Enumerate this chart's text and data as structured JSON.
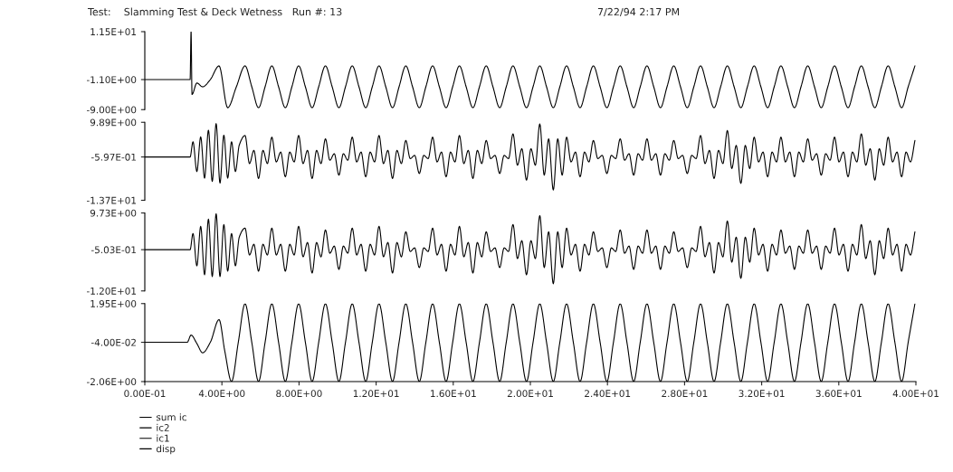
{
  "chart_data": [
    {
      "type": "line",
      "title": "Test:    Slamming Test & Deck Wetness   Run #: 13",
      "annotations": [
        "7/22/94 2:17 PM"
      ],
      "legend": "bottom left",
      "tick_labels": "y",
      "xlim": [
        0,
        40
      ],
      "ylim": [
        -9.0,
        11.5
      ],
      "yticks": [
        {
          "value": 11.5,
          "label": "1.15E+01"
        },
        {
          "value": -1.1,
          "label": "-1.10E+00"
        },
        {
          "value": -9.0,
          "label": "-9.00E+00"
        }
      ],
      "x": [
        0,
        2.35,
        2.4,
        2.45,
        2.7,
        3.0,
        3.4,
        3.85,
        4.3,
        4.75,
        5.2,
        5.55,
        5.9,
        6.24,
        6.59,
        6.94,
        7.29,
        7.63,
        7.98,
        8.33,
        8.68,
        9.02,
        9.37,
        9.72,
        10.07,
        10.41,
        10.76,
        11.11,
        11.46,
        11.8,
        12.15,
        12.5,
        12.85,
        13.19,
        13.54,
        13.89,
        14.24,
        14.58,
        14.93,
        15.28,
        15.63,
        15.97,
        16.32,
        16.67,
        17.02,
        17.36,
        17.71,
        18.06,
        18.41,
        18.75,
        19.1,
        19.45,
        19.8,
        20.14,
        20.49,
        20.84,
        21.19,
        21.53,
        21.88,
        22.23,
        22.58,
        22.92,
        23.27,
        23.62,
        23.97,
        24.31,
        24.66,
        25.01,
        25.36,
        25.7,
        26.05,
        26.4,
        26.75,
        27.09,
        27.44,
        27.79,
        28.14,
        28.48,
        28.83,
        29.18,
        29.53,
        29.87,
        30.22,
        30.57,
        30.92,
        31.26,
        31.61,
        31.96,
        32.31,
        32.65,
        33.0,
        33.35,
        33.7,
        34.04,
        34.39,
        34.74,
        35.09,
        35.43,
        35.78,
        36.13,
        36.48,
        36.82,
        37.17,
        37.52,
        37.87,
        38.21,
        38.56,
        38.91,
        39.26,
        39.6,
        39.95
      ],
      "series": [
        {
          "name": "sum ic",
          "color": "#000000",
          "values": [
            -1.1,
            -1.1,
            11.5,
            -5.0,
            -2.0,
            -3.0,
            -1.1,
            2.5,
            -8.5,
            -3.0,
            2.5,
            -3.0,
            -8.5,
            -3.0,
            2.5,
            -3.0,
            -8.5,
            -3.0,
            2.5,
            -3.0,
            -8.5,
            -3.0,
            2.5,
            -3.0,
            -8.5,
            -3.0,
            2.5,
            -3.0,
            -8.5,
            -3.0,
            2.5,
            -3.0,
            -8.5,
            -3.0,
            2.5,
            -3.0,
            -8.5,
            -3.0,
            2.5,
            -3.0,
            -8.5,
            -3.0,
            2.5,
            -3.0,
            -8.5,
            -3.0,
            2.5,
            -3.0,
            -8.5,
            -3.0,
            2.5,
            -3.0,
            -8.5,
            -3.0,
            2.5,
            -3.0,
            -8.5,
            -3.0,
            2.5,
            -3.0,
            -8.5,
            -3.0,
            2.5,
            -3.0,
            -8.5,
            -3.0,
            2.5,
            -3.0,
            -8.5,
            -3.0,
            2.5,
            -3.0,
            -8.5,
            -3.0,
            2.5,
            -3.0,
            -8.5,
            -3.0,
            2.5,
            -3.0,
            -8.5,
            -3.0,
            2.5,
            -3.0,
            -8.5,
            -3.0,
            2.5,
            -3.0,
            -8.5,
            -3.0,
            2.5,
            -3.0,
            -8.5,
            -3.0,
            2.5,
            -3.0,
            -8.5,
            -3.0,
            2.5,
            -3.0,
            -8.5,
            -3.0,
            2.5,
            -3.0,
            -8.5,
            -3.0,
            2.5,
            -3.0,
            -8.5,
            -3.0,
            2.5
          ]
        }
      ]
    },
    {
      "type": "line",
      "legend": "bottom left",
      "tick_labels": "y",
      "xlim": [
        0,
        40
      ],
      "ylim": [
        -13.7,
        9.89
      ],
      "yticks": [
        {
          "value": 9.89,
          "label": "9.89E+00"
        },
        {
          "value": -0.597,
          "label": "-5.97E-01"
        },
        {
          "value": -13.7,
          "label": "-1.37E+01"
        }
      ],
      "x": [
        0,
        2.35,
        2.5,
        2.7,
        2.9,
        3.1,
        3.3,
        3.5,
        3.7,
        3.9,
        4.1,
        4.3,
        4.5,
        4.7,
        4.9,
        5.2,
        5.43,
        5.66,
        5.9,
        6.13,
        6.36,
        6.59,
        6.82,
        7.05,
        7.29,
        7.52,
        7.75,
        7.98,
        8.21,
        8.44,
        8.68,
        8.91,
        9.14,
        9.37,
        9.6,
        9.83,
        10.07,
        10.3,
        10.53,
        10.76,
        10.99,
        11.22,
        11.46,
        11.69,
        11.92,
        12.15,
        12.38,
        12.61,
        12.85,
        13.08,
        13.31,
        13.54,
        13.77,
        14.0,
        14.24,
        14.47,
        14.7,
        14.93,
        15.16,
        15.39,
        15.63,
        15.86,
        16.09,
        16.32,
        16.55,
        16.78,
        17.02,
        17.25,
        17.48,
        17.71,
        17.94,
        18.17,
        18.41,
        18.64,
        18.87,
        19.1,
        19.33,
        19.56,
        19.8,
        20.03,
        20.26,
        20.49,
        20.72,
        20.95,
        21.19,
        21.42,
        21.65,
        21.88,
        22.11,
        22.34,
        22.58,
        22.81,
        23.04,
        23.27,
        23.5,
        23.73,
        23.97,
        24.2,
        24.43,
        24.66,
        24.89,
        25.12,
        25.36,
        25.59,
        25.82,
        26.05,
        26.28,
        26.51,
        26.75,
        26.98,
        27.21,
        27.44,
        27.67,
        27.9,
        28.14,
        28.37,
        28.6,
        28.83,
        29.06,
        29.29,
        29.53,
        29.76,
        29.99,
        30.22,
        30.45,
        30.68,
        30.92,
        31.15,
        31.38,
        31.61,
        31.84,
        32.07,
        32.31,
        32.54,
        32.77,
        33.0,
        33.23,
        33.46,
        33.7,
        33.93,
        34.16,
        34.39,
        34.62,
        34.85,
        35.09,
        35.32,
        35.55,
        35.78,
        36.01,
        36.24,
        36.48,
        36.71,
        36.94,
        37.17,
        37.4,
        37.63,
        37.87,
        38.1,
        38.33,
        38.56,
        38.79,
        39.02,
        39.26,
        39.49,
        39.72,
        39.95
      ],
      "series": [
        {
          "name": "ic2",
          "color": "#000000",
          "values": [
            -0.6,
            -0.6,
            4,
            -5,
            5.5,
            -7,
            7.5,
            -8,
            9.5,
            -8.5,
            6,
            -7,
            4,
            -5,
            3,
            5.9,
            -2.6,
            1.4,
            -7.1,
            1.4,
            -2.6,
            5.4,
            -2.1,
            0.9,
            -6.6,
            0.9,
            -2.1,
            5.9,
            -2.6,
            1.4,
            -7.1,
            1.4,
            -2.6,
            4.9,
            -1.6,
            0.4,
            -6.1,
            0.4,
            -1.6,
            5.4,
            -2.1,
            0.9,
            -6.6,
            0.9,
            -2.1,
            5.9,
            -2.6,
            1.4,
            -7.1,
            1.4,
            -2.6,
            4.4,
            -1.1,
            -0.1,
            -5.6,
            -0.1,
            -1.1,
            5.4,
            -2.1,
            0.9,
            -6.6,
            0.9,
            -2.1,
            5.9,
            -2.6,
            1.4,
            -7.1,
            1.4,
            -2.6,
            4.4,
            -1.1,
            -0.1,
            -5.6,
            -0.1,
            -1.1,
            6.4,
            -3.1,
            1.9,
            -7.6,
            1.9,
            -3.1,
            9.4,
            -6.1,
            4.9,
            -10.6,
            4.9,
            -6.1,
            5.4,
            -2.1,
            0.9,
            -6.6,
            0.9,
            -2.1,
            4.4,
            -1.1,
            -0.1,
            -5.6,
            -0.1,
            -1.1,
            4.9,
            -1.6,
            0.4,
            -6.1,
            0.4,
            -1.6,
            4.9,
            -1.6,
            0.4,
            -6.1,
            0.4,
            -1.6,
            4.4,
            -1.1,
            -0.1,
            -5.6,
            -0.1,
            -1.1,
            5.9,
            -2.6,
            1.4,
            -7.1,
            1.4,
            -2.6,
            7.4,
            -4.1,
            2.9,
            -8.6,
            2.9,
            -4.1,
            5.4,
            -2.1,
            0.9,
            -6.6,
            0.9,
            -2.1,
            5.4,
            -2.1,
            0.9,
            -6.6,
            0.9,
            -2.1,
            4.9,
            -1.6,
            0.4,
            -6.1,
            0.4,
            -1.6,
            5.4,
            -2.1,
            0.9,
            -6.6,
            0.9,
            -2.1,
            6.4,
            -3.1,
            1.9,
            -7.6,
            1.9,
            -3.1,
            5.4,
            -2.1,
            0.9,
            -6.6,
            0.9,
            -2.1,
            4.4
          ]
        }
      ]
    },
    {
      "type": "line",
      "legend": "bottom left",
      "tick_labels": "y",
      "xlim": [
        0,
        40
      ],
      "ylim": [
        -12.0,
        9.73
      ],
      "yticks": [
        {
          "value": 9.73,
          "label": "9.73E+00"
        },
        {
          "value": -0.503,
          "label": "-5.03E-01"
        },
        {
          "value": -12.0,
          "label": "-1.20E+01"
        }
      ],
      "x": [
        0,
        2.35,
        2.5,
        2.7,
        2.9,
        3.1,
        3.3,
        3.5,
        3.7,
        3.9,
        4.1,
        4.3,
        4.5,
        4.7,
        4.9,
        5.2,
        5.43,
        5.66,
        5.9,
        6.13,
        6.36,
        6.59,
        6.82,
        7.05,
        7.29,
        7.52,
        7.75,
        7.98,
        8.21,
        8.44,
        8.68,
        8.91,
        9.14,
        9.37,
        9.6,
        9.83,
        10.07,
        10.3,
        10.53,
        10.76,
        10.99,
        11.22,
        11.46,
        11.69,
        11.92,
        12.15,
        12.38,
        12.61,
        12.85,
        13.08,
        13.31,
        13.54,
        13.77,
        14.0,
        14.24,
        14.47,
        14.7,
        14.93,
        15.16,
        15.39,
        15.63,
        15.86,
        16.09,
        16.32,
        16.55,
        16.78,
        17.02,
        17.25,
        17.48,
        17.71,
        17.94,
        18.17,
        18.41,
        18.64,
        18.87,
        19.1,
        19.33,
        19.56,
        19.8,
        20.03,
        20.26,
        20.49,
        20.72,
        20.95,
        21.19,
        21.42,
        21.65,
        21.88,
        22.11,
        22.34,
        22.58,
        22.81,
        23.04,
        23.27,
        23.5,
        23.73,
        23.97,
        24.2,
        24.43,
        24.66,
        24.89,
        25.12,
        25.36,
        25.59,
        25.82,
        26.05,
        26.28,
        26.51,
        26.75,
        26.98,
        27.21,
        27.44,
        27.67,
        27.9,
        28.14,
        28.37,
        28.6,
        28.83,
        29.06,
        29.29,
        29.53,
        29.76,
        29.99,
        30.22,
        30.45,
        30.68,
        30.92,
        31.15,
        31.38,
        31.61,
        31.84,
        32.07,
        32.31,
        32.54,
        32.77,
        33.0,
        33.23,
        33.46,
        33.7,
        33.93,
        34.16,
        34.39,
        34.62,
        34.85,
        35.09,
        35.32,
        35.55,
        35.78,
        36.01,
        36.24,
        36.48,
        36.71,
        36.94,
        37.17,
        37.4,
        37.63,
        37.87,
        38.1,
        38.33,
        38.56,
        38.79,
        39.02,
        39.26,
        39.49,
        39.72,
        39.95
      ],
      "series": [
        {
          "name": "ic1",
          "color": "#000000",
          "values": [
            -0.5,
            -0.5,
            4,
            -5,
            6,
            -7.5,
            8,
            -8,
            9.5,
            -8,
            6.5,
            -6.5,
            4,
            -5,
            3,
            5.5,
            -2.0,
            1.0,
            -6.5,
            1.0,
            -2.0,
            5.5,
            -2.0,
            1.0,
            -6.5,
            1.0,
            -2.0,
            6.0,
            -2.5,
            1.5,
            -7.0,
            1.5,
            -2.5,
            5.0,
            -1.5,
            0.5,
            -6.0,
            0.5,
            -1.5,
            5.5,
            -2.0,
            1.0,
            -6.5,
            1.0,
            -2.0,
            6.0,
            -2.5,
            1.5,
            -7.0,
            1.5,
            -2.5,
            4.5,
            -1.0,
            0.0,
            -5.5,
            0.0,
            -1.0,
            5.5,
            -2.0,
            1.0,
            -6.5,
            1.0,
            -2.0,
            6.0,
            -2.5,
            1.5,
            -7.0,
            1.5,
            -2.5,
            4.5,
            -1.0,
            0.0,
            -5.5,
            0.0,
            -1.0,
            6.5,
            -3.0,
            2.0,
            -7.5,
            2.0,
            -3.0,
            9.0,
            -5.5,
            4.5,
            -10.0,
            4.5,
            -5.5,
            5.5,
            -2.0,
            1.0,
            -6.5,
            1.0,
            -2.0,
            4.5,
            -1.0,
            0.0,
            -5.5,
            0.0,
            -1.0,
            5.0,
            -1.5,
            0.5,
            -6.0,
            0.5,
            -1.5,
            5.0,
            -1.5,
            0.5,
            -6.0,
            0.5,
            -1.5,
            4.5,
            -1.0,
            0.0,
            -5.5,
            0.0,
            -1.0,
            6.0,
            -2.5,
            1.5,
            -7.0,
            1.5,
            -2.5,
            7.5,
            -4.0,
            3.0,
            -8.5,
            3.0,
            -4.0,
            5.5,
            -2.0,
            1.0,
            -6.5,
            1.0,
            -2.0,
            5.0,
            -1.5,
            0.5,
            -6.0,
            0.5,
            -1.5,
            5.0,
            -1.5,
            0.5,
            -6.0,
            0.5,
            -1.5,
            5.5,
            -2.0,
            1.0,
            -6.5,
            1.0,
            -2.0,
            6.5,
            -3.0,
            2.0,
            -7.5,
            2.0,
            -3.0,
            5.5,
            -2.0,
            1.0,
            -6.5,
            1.0,
            -2.0,
            4.5
          ]
        }
      ]
    },
    {
      "type": "line",
      "legend": "bottom left",
      "xlim": [
        0,
        40
      ],
      "xticks": [
        {
          "value": 0,
          "label": "0.00E-01"
        },
        {
          "value": 4,
          "label": "4.00E+00"
        },
        {
          "value": 8,
          "label": "8.00E+00"
        },
        {
          "value": 12,
          "label": "1.20E+01"
        },
        {
          "value": 16,
          "label": "1.60E+01"
        },
        {
          "value": 20,
          "label": "2.00E+01"
        },
        {
          "value": 24,
          "label": "2.40E+01"
        },
        {
          "value": 28,
          "label": "2.80E+01"
        },
        {
          "value": 32,
          "label": "3.20E+01"
        },
        {
          "value": 36,
          "label": "3.60E+01"
        },
        {
          "value": 40,
          "label": "4.00E+01"
        }
      ],
      "ylim": [
        -2.06,
        1.95
      ],
      "yticks": [
        {
          "value": 1.95,
          "label": "1.95E+00"
        },
        {
          "value": -0.04,
          "label": "-4.00E-02"
        },
        {
          "value": -2.06,
          "label": "-2.06E+00"
        }
      ],
      "x": [
        0,
        2.2,
        2.4,
        2.7,
        3.0,
        3.4,
        3.85,
        4.15,
        4.5,
        4.85,
        5.2,
        5.55,
        5.9,
        6.24,
        6.59,
        6.94,
        7.29,
        7.63,
        7.98,
        8.33,
        8.68,
        9.02,
        9.37,
        9.72,
        10.07,
        10.41,
        10.76,
        11.11,
        11.46,
        11.8,
        12.15,
        12.5,
        12.85,
        13.19,
        13.54,
        13.89,
        14.24,
        14.58,
        14.93,
        15.28,
        15.63,
        15.97,
        16.32,
        16.67,
        17.02,
        17.36,
        17.71,
        18.06,
        18.41,
        18.75,
        19.1,
        19.45,
        19.8,
        20.14,
        20.49,
        20.84,
        21.19,
        21.53,
        21.88,
        22.23,
        22.58,
        22.92,
        23.27,
        23.62,
        23.97,
        24.31,
        24.66,
        25.01,
        25.36,
        25.7,
        26.05,
        26.4,
        26.75,
        27.09,
        27.44,
        27.79,
        28.14,
        28.48,
        28.83,
        29.18,
        29.53,
        29.87,
        30.22,
        30.57,
        30.92,
        31.26,
        31.61,
        31.96,
        32.31,
        32.65,
        33.0,
        33.35,
        33.7,
        34.04,
        34.39,
        34.74,
        35.09,
        35.43,
        35.78,
        36.13,
        36.48,
        36.82,
        37.17,
        37.52,
        37.87,
        38.21,
        38.56,
        38.91,
        39.26,
        39.6,
        39.95
      ],
      "series": [
        {
          "name": "disp",
          "color": "#000000",
          "values": [
            -0.04,
            -0.04,
            0.33,
            -0.1,
            -0.58,
            -0.04,
            1.13,
            -0.5,
            -2.06,
            -0.04,
            1.95,
            -0.04,
            -2.06,
            -0.04,
            1.95,
            -0.04,
            -2.06,
            -0.04,
            1.95,
            -0.04,
            -2.06,
            -0.04,
            1.95,
            -0.04,
            -2.06,
            -0.04,
            1.95,
            -0.04,
            -2.06,
            -0.04,
            1.95,
            -0.04,
            -2.06,
            -0.04,
            1.95,
            -0.04,
            -2.06,
            -0.04,
            1.95,
            -0.04,
            -2.06,
            -0.04,
            1.95,
            -0.04,
            -2.06,
            -0.04,
            1.95,
            -0.04,
            -2.06,
            -0.04,
            1.95,
            -0.04,
            -2.06,
            -0.04,
            1.95,
            -0.04,
            -2.06,
            -0.04,
            1.95,
            -0.04,
            -2.06,
            -0.04,
            1.95,
            -0.04,
            -2.06,
            -0.04,
            1.95,
            -0.04,
            -2.06,
            -0.04,
            1.95,
            -0.04,
            -2.06,
            -0.04,
            1.95,
            -0.04,
            -2.06,
            -0.04,
            1.95,
            -0.04,
            -2.06,
            -0.04,
            1.95,
            -0.04,
            -2.06,
            -0.04,
            1.95,
            -0.04,
            -2.06,
            -0.04,
            1.95,
            -0.04,
            -2.06,
            -0.04,
            1.95,
            -0.04,
            -2.06,
            -0.04,
            1.95,
            -0.04,
            -2.06,
            -0.04,
            1.95,
            -0.04,
            -2.06,
            -0.04,
            1.95,
            -0.04,
            -2.06,
            -0.04,
            1.95
          ]
        }
      ]
    }
  ]
}
